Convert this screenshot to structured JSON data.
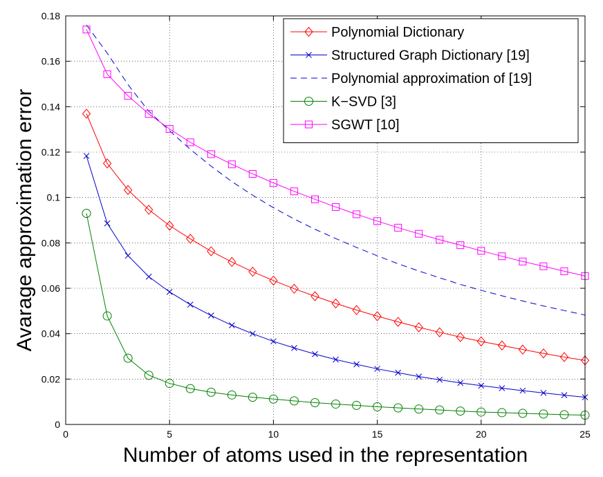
{
  "chart_data": {
    "type": "line",
    "title": "",
    "xlabel": "Number of atoms used in the representation",
    "ylabel": "Avarage approximation error",
    "xlim": [
      0,
      25
    ],
    "ylim": [
      0,
      0.18
    ],
    "grid": true,
    "legend_position": "top-right",
    "x_ticks": [
      0,
      5,
      10,
      15,
      20,
      25
    ],
    "x_tick_labels": [
      "0",
      "5",
      "10",
      "15",
      "20",
      "25"
    ],
    "y_ticks": [
      0,
      0.02,
      0.04,
      0.06,
      0.08,
      0.1,
      0.12,
      0.14,
      0.16,
      0.18
    ],
    "y_tick_labels": [
      "0",
      "0.02",
      "0.04",
      "0.06",
      "0.08",
      "0.1",
      "0.12",
      "0.14",
      "0.16",
      "0.18"
    ],
    "x": [
      1,
      2,
      3,
      4,
      5,
      6,
      7,
      8,
      9,
      10,
      11,
      12,
      13,
      14,
      15,
      16,
      17,
      18,
      19,
      20,
      21,
      22,
      23,
      24,
      25
    ],
    "series": [
      {
        "name": "Polynomial Dictionary",
        "color": "#ff0000",
        "marker": "diamond",
        "line_style": "solid",
        "values": [
          0.1369,
          0.115,
          0.1033,
          0.0946,
          0.0876,
          0.0818,
          0.0763,
          0.0716,
          0.0673,
          0.0634,
          0.0598,
          0.0565,
          0.0533,
          0.0504,
          0.0477,
          0.0452,
          0.0428,
          0.0406,
          0.0385,
          0.0366,
          0.0348,
          0.033,
          0.0313,
          0.0297,
          0.0282
        ]
      },
      {
        "name": "Structured Graph Dictionary [19]",
        "color": "#0000cc",
        "marker": "x",
        "line_style": "solid",
        "values": [
          0.1183,
          0.0886,
          0.0744,
          0.0651,
          0.0584,
          0.0528,
          0.048,
          0.0437,
          0.04,
          0.0366,
          0.0337,
          0.031,
          0.0286,
          0.0265,
          0.0245,
          0.0228,
          0.0211,
          0.0197,
          0.0183,
          0.0171,
          0.016,
          0.0149,
          0.0139,
          0.0129,
          0.012
        ]
      },
      {
        "name": "Polynomial approximation of [19]",
        "color": "#0000cc",
        "marker": "none",
        "line_style": "dashed",
        "values": [
          0.176,
          0.1636,
          0.1497,
          0.138,
          0.1294,
          0.1212,
          0.1138,
          0.107,
          0.101,
          0.0955,
          0.0905,
          0.086,
          0.0819,
          0.078,
          0.0743,
          0.0708,
          0.0676,
          0.0646,
          0.0617,
          0.0591,
          0.0567,
          0.0544,
          0.0522,
          0.0502,
          0.0482
        ]
      },
      {
        "name": "K−SVD [3]",
        "color": "#008000",
        "marker": "circle",
        "line_style": "solid",
        "values": [
          0.093,
          0.0478,
          0.0292,
          0.0217,
          0.0181,
          0.0158,
          0.0142,
          0.013,
          0.012,
          0.0112,
          0.0104,
          0.0096,
          0.009,
          0.0084,
          0.0078,
          0.0073,
          0.0068,
          0.0064,
          0.0059,
          0.0055,
          0.0052,
          0.0049,
          0.0046,
          0.0043,
          0.0041
        ]
      },
      {
        "name": "SGWT [10]",
        "color": "#ff00ff",
        "marker": "square",
        "line_style": "solid",
        "values": [
          0.174,
          0.1543,
          0.1448,
          0.1368,
          0.1302,
          0.1243,
          0.1191,
          0.1146,
          0.1104,
          0.1064,
          0.1027,
          0.0992,
          0.0958,
          0.0926,
          0.0896,
          0.0867,
          0.084,
          0.0814,
          0.079,
          0.0765,
          0.0741,
          0.0718,
          0.0697,
          0.0675,
          0.0654
        ]
      }
    ]
  }
}
